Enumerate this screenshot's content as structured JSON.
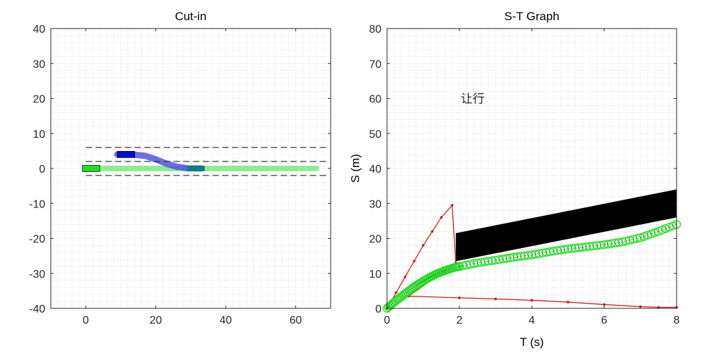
{
  "chart_data": [
    {
      "type": "scatter",
      "title": "Cut-in",
      "xlabel": "",
      "ylabel": "",
      "xlim": [
        -10,
        70
      ],
      "ylim": [
        -40,
        40
      ],
      "x_ticks": [
        0,
        20,
        40,
        60
      ],
      "y_ticks": [
        -40,
        -30,
        -20,
        -10,
        0,
        10,
        20,
        30,
        40
      ],
      "grid": "minor dotted",
      "lane_lines": [
        {
          "y": 6,
          "x_start": 0,
          "x_end": 70,
          "style": "dashed",
          "color": "#222222"
        },
        {
          "y": 2,
          "x_start": 0,
          "x_end": 70,
          "style": "dashed",
          "color": "#222222"
        },
        {
          "y": -2,
          "x_start": 0,
          "x_end": 70,
          "style": "dashed",
          "color": "#222222"
        }
      ],
      "ego_vehicle": {
        "x_start": -1,
        "x_end": 4,
        "y": 0,
        "color": "#22dd22"
      },
      "ego_trajectory": {
        "x_start": 0,
        "x_end": 66,
        "y": 0,
        "color": "#7ee87e"
      },
      "cut_in_vehicle": {
        "x_start": 9,
        "x_end": 14,
        "y": 4,
        "color": "#0a0ad8"
      },
      "cut_in_path": {
        "color": "#4a4ae0",
        "points": [
          [
            9,
            4
          ],
          [
            13,
            4
          ],
          [
            17,
            3.6
          ],
          [
            20,
            2.6
          ],
          [
            23,
            1.4
          ],
          [
            26,
            0.5
          ],
          [
            29,
            0.05
          ],
          [
            33,
            0
          ]
        ]
      },
      "cut_in_end_box": {
        "x_start": 29,
        "x_end": 34,
        "y": 0,
        "color": "#0d7d86"
      }
    },
    {
      "type": "line",
      "title": "S-T Graph",
      "xlabel": "T (s)",
      "ylabel": "S (m)",
      "xlim": [
        0,
        8
      ],
      "ylim": [
        0,
        80
      ],
      "x_ticks": [
        0,
        2,
        4,
        6,
        8
      ],
      "y_ticks": [
        0,
        10,
        20,
        30,
        40,
        50,
        60,
        70,
        80
      ],
      "grid": "minor dotted",
      "annotation": {
        "text": "让行",
        "x": 2,
        "y": 60
      },
      "obstacle": {
        "color": "#000000",
        "polygon": [
          [
            1.9,
            21.5
          ],
          [
            8,
            34
          ],
          [
            8,
            26
          ],
          [
            1.9,
            13.5
          ]
        ]
      },
      "series": [
        {
          "style": "red-dotted-line",
          "color": "#cc1111",
          "points": [
            [
              0,
              0
            ],
            [
              0.25,
              4.5
            ],
            [
              0.5,
              9
            ],
            [
              0.75,
              13.5
            ],
            [
              1,
              18
            ],
            [
              1.25,
              22
            ],
            [
              1.5,
              26
            ],
            [
              1.8,
              29.5
            ],
            [
              1.9,
              13
            ],
            [
              0.6,
              3.5
            ],
            [
              2,
              3
            ],
            [
              3,
              2.7
            ],
            [
              4,
              2.3
            ],
            [
              5,
              1.8
            ],
            [
              6,
              1.1
            ],
            [
              7,
              0.5
            ],
            [
              7.5,
              0.3
            ],
            [
              8,
              0.3
            ]
          ]
        },
        {
          "style": "green-circles",
          "color": "#22dd22",
          "points": [
            [
              0,
              0
            ],
            [
              0.2,
              1.8
            ],
            [
              0.4,
              3.4
            ],
            [
              0.6,
              5
            ],
            [
              0.8,
              6.5
            ],
            [
              1,
              7.8
            ],
            [
              1.2,
              9
            ],
            [
              1.4,
              10
            ],
            [
              1.6,
              10.8
            ],
            [
              1.8,
              11.5
            ],
            [
              2,
              12
            ],
            [
              2.5,
              13
            ],
            [
              3,
              13.8
            ],
            [
              3.5,
              14.6
            ],
            [
              4,
              15.3
            ],
            [
              4.5,
              16.2
            ],
            [
              5,
              17
            ],
            [
              5.5,
              17.6
            ],
            [
              6,
              18.2
            ],
            [
              6.5,
              19
            ],
            [
              7,
              20.2
            ],
            [
              7.5,
              22
            ],
            [
              8,
              24
            ]
          ]
        },
        {
          "style": "dark-dotted-line",
          "color": "#333333",
          "points": [
            [
              0,
              0
            ],
            [
              0.2,
              1.8
            ],
            [
              0.4,
              3.4
            ],
            [
              0.6,
              5
            ],
            [
              0.8,
              6.5
            ],
            [
              1,
              7.8
            ],
            [
              1.2,
              9
            ],
            [
              1.4,
              10
            ],
            [
              1.6,
              10.8
            ],
            [
              1.8,
              11.5
            ],
            [
              2,
              12
            ],
            [
              2.5,
              13
            ],
            [
              3,
              13.8
            ],
            [
              3.5,
              14.6
            ],
            [
              4,
              15.3
            ],
            [
              4.5,
              16.2
            ],
            [
              5,
              17
            ],
            [
              5.5,
              17.6
            ],
            [
              6,
              18.2
            ],
            [
              6.5,
              19
            ],
            [
              7,
              20.2
            ],
            [
              7.5,
              22
            ],
            [
              8,
              24
            ]
          ]
        }
      ]
    }
  ]
}
